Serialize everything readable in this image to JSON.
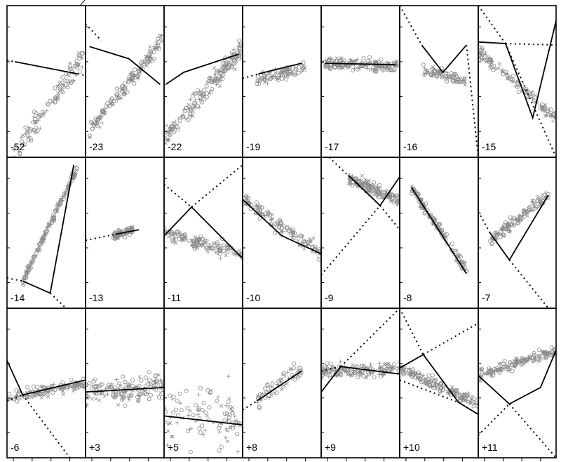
{
  "chart_data": {
    "type": "scatter",
    "title": "",
    "xlabel": "",
    "ylabel": "",
    "grid": false,
    "layout": {
      "rows": 3,
      "cols": 7
    },
    "axis_ranges": {
      "x": [
        0,
        1
      ],
      "y": [
        0,
        1
      ]
    },
    "colors": {
      "points": "#8a8a8a",
      "lines": "#000000"
    },
    "panels": [
      {
        "label": "-52",
        "cloud": [
          0.08,
          0.98,
          0.0,
          0.68,
          0.46,
          0.13,
          0.5
        ],
        "fit": [
          [
            0.1,
            0.63
          ],
          [
            0.9,
            0.55
          ]
        ],
        "ext": [
          [
            [
              0.0,
              0.64
            ],
            [
              0.1,
              0.63
            ]
          ],
          [
            [
              0.9,
              0.55
            ],
            [
              1.0,
              0.54
            ]
          ]
        ]
      },
      {
        "label": "-23",
        "cloud": [
          0.05,
          0.98,
          0.18,
          0.77,
          0.6,
          0.07,
          0.7
        ],
        "fit": [
          [
            0.05,
            0.73
          ],
          [
            0.55,
            0.65
          ],
          [
            0.95,
            0.48
          ]
        ],
        "ext": [
          [
            [
              0.0,
              0.88
            ],
            [
              0.2,
              0.77
            ]
          ]
        ]
      },
      {
        "label": "-22",
        "cloud": [
          0.0,
          1.0,
          0.12,
          0.72,
          0.75,
          0.09,
          0.85
        ],
        "fit": [
          [
            0.02,
            0.48
          ],
          [
            0.25,
            0.56
          ],
          [
            0.95,
            0.68
          ]
        ],
        "ext": []
      },
      {
        "label": "-19",
        "cloud": [
          0.18,
          0.8,
          0.5,
          0.6,
          0.6,
          0.06,
          0.4
        ],
        "fit": [
          [
            0.2,
            0.55
          ],
          [
            0.75,
            0.62
          ]
        ],
        "ext": [
          [
            [
              0.0,
              0.52
            ],
            [
              0.2,
              0.55
            ]
          ]
        ]
      },
      {
        "label": "-17",
        "cloud": [
          0.05,
          0.98,
          0.62,
          0.6,
          0.62,
          0.05,
          0.75
        ],
        "fit": [
          [
            0.05,
            0.62
          ],
          [
            0.95,
            0.61
          ]
        ],
        "ext": [
          [
            [
              0.0,
              0.625
            ],
            [
              0.05,
              0.62
            ]
          ]
        ]
      },
      {
        "label": "-16",
        "cloud": [
          0.3,
          0.85,
          0.58,
          0.5,
          0.64,
          0.05,
          0.35
        ],
        "fit": [
          [
            0.28,
            0.74
          ],
          [
            0.55,
            0.56
          ],
          [
            0.85,
            0.74
          ]
        ],
        "ext": [
          [
            [
              0.0,
              1.0
            ],
            [
              0.28,
              0.74
            ]
          ],
          [
            [
              0.85,
              0.74
            ],
            [
              1.0,
              0.0
            ]
          ]
        ]
      },
      {
        "label": "-15",
        "cloud": [
          0.0,
          1.0,
          0.7,
          0.26,
          0.76,
          0.05,
          0.55
        ],
        "fit": [
          [
            0.0,
            0.76
          ],
          [
            0.35,
            0.75
          ],
          [
            0.7,
            0.26
          ],
          [
            1.0,
            0.9
          ]
        ],
        "ext": [
          [
            [
              0.0,
              1.0
            ],
            [
              0.35,
              0.75
            ]
          ],
          [
            [
              0.35,
              0.75
            ],
            [
              1.0,
              0.0
            ]
          ],
          [
            [
              0.35,
              0.75
            ],
            [
              1.0,
              0.74
            ]
          ]
        ]
      },
      {
        "label": "-14",
        "cloud": [
          0.2,
          0.9,
          0.18,
          0.94,
          0.6,
          0.04,
          0.7
        ],
        "fit": [
          [
            0.2,
            0.18
          ],
          [
            0.55,
            0.1
          ],
          [
            0.85,
            0.95
          ]
        ],
        "ext": [
          [
            [
              0.0,
              0.2
            ],
            [
              0.2,
              0.18
            ]
          ],
          [
            [
              0.55,
              0.1
            ],
            [
              0.75,
              0.0
            ]
          ]
        ]
      },
      {
        "label": "-13",
        "cloud": [
          0.35,
          0.6,
          0.48,
          0.52,
          0.2,
          0.05,
          0.35
        ],
        "fit": [
          [
            0.38,
            0.49
          ],
          [
            0.68,
            0.52
          ]
        ],
        "ext": [
          [
            [
              0.0,
              0.45
            ],
            [
              0.38,
              0.49
            ]
          ]
        ]
      },
      {
        "label": "-11",
        "cloud": [
          0.0,
          1.0,
          0.5,
          0.35,
          0.75,
          0.06,
          0.6
        ],
        "fit": [
          [
            0.0,
            0.48
          ],
          [
            0.35,
            0.67
          ],
          [
            1.0,
            0.33
          ]
        ],
        "ext": [
          [
            [
              0.0,
              0.82
            ],
            [
              0.35,
              0.67
            ]
          ],
          [
            [
              0.35,
              0.67
            ],
            [
              1.0,
              0.95
            ]
          ]
        ]
      },
      {
        "label": "-10",
        "cloud": [
          0.0,
          1.0,
          0.72,
          0.36,
          0.72,
          0.06,
          0.6
        ],
        "fit": [
          [
            0.0,
            0.72
          ],
          [
            0.5,
            0.48
          ],
          [
            1.0,
            0.36
          ]
        ],
        "ext": []
      },
      {
        "label": "-9",
        "cloud": [
          0.35,
          1.0,
          0.86,
          0.72,
          0.74,
          0.05,
          0.7
        ],
        "fit": [
          [
            0.35,
            0.88
          ],
          [
            0.75,
            0.68
          ],
          [
            1.0,
            0.87
          ]
        ],
        "ext": [
          [
            [
              0.0,
              0.22
            ],
            [
              0.75,
              0.68
            ]
          ],
          [
            [
              0.1,
              1.0
            ],
            [
              0.75,
              0.68
            ]
          ],
          [
            [
              0.75,
              0.68
            ],
            [
              1.0,
              0.52
            ]
          ]
        ]
      },
      {
        "label": "-8",
        "cloud": [
          0.15,
          0.85,
          0.8,
          0.25,
          0.72,
          0.05,
          0.6
        ],
        "fit": [
          [
            0.15,
            0.8
          ],
          [
            0.85,
            0.23
          ]
        ],
        "ext": []
      },
      {
        "label": "-7",
        "cloud": [
          0.15,
          0.9,
          0.45,
          0.75,
          0.72,
          0.05,
          0.6
        ],
        "fit": [
          [
            0.15,
            0.5
          ],
          [
            0.4,
            0.32
          ],
          [
            0.9,
            0.75
          ]
        ],
        "ext": [
          [
            [
              0.0,
              0.64
            ],
            [
              0.15,
              0.5
            ]
          ],
          [
            [
              0.4,
              0.32
            ],
            [
              0.9,
              0.0
            ]
          ]
        ]
      },
      {
        "label": "-6",
        "cloud": [
          0.0,
          1.0,
          0.4,
          0.5,
          0.75,
          0.05,
          0.6
        ],
        "fit": [
          [
            0.0,
            0.65
          ],
          [
            0.2,
            0.42
          ],
          [
            1.0,
            0.52
          ]
        ],
        "ext": [
          [
            [
              0.0,
              0.38
            ],
            [
              0.2,
              0.42
            ]
          ],
          [
            [
              0.2,
              0.42
            ],
            [
              0.8,
              0.0
            ]
          ]
        ]
      },
      {
        "label": "+3",
        "cloud": [
          0.0,
          1.0,
          0.44,
          0.47,
          0.8,
          0.1,
          0.7
        ],
        "fit": [
          [
            0.0,
            0.44
          ],
          [
            1.0,
            0.47
          ]
        ],
        "ext": []
      },
      {
        "label": "+5",
        "cloud": [
          0.0,
          1.0,
          0.27,
          0.27,
          0.8,
          0.25,
          0.45
        ],
        "fit": [
          [
            0.0,
            0.28
          ],
          [
            1.0,
            0.22
          ]
        ],
        "ext": []
      },
      {
        "label": "+8",
        "cloud": [
          0.18,
          0.75,
          0.38,
          0.6,
          0.3,
          0.12,
          0.3
        ],
        "fit": [
          [
            0.18,
            0.38
          ],
          [
            0.75,
            0.58
          ]
        ],
        "ext": [
          [
            [
              0.0,
              0.32
            ],
            [
              0.18,
              0.38
            ]
          ]
        ]
      },
      {
        "label": "+9",
        "cloud": [
          0.0,
          1.0,
          0.58,
          0.59,
          0.72,
          0.06,
          0.7
        ],
        "fit": [
          [
            0.0,
            0.44
          ],
          [
            0.25,
            0.61
          ],
          [
            1.0,
            0.56
          ]
        ],
        "ext": [
          [
            [
              0.0,
              0.58
            ],
            [
              0.25,
              0.61
            ]
          ],
          [
            [
              0.25,
              0.61
            ],
            [
              1.0,
              1.0
            ]
          ]
        ]
      },
      {
        "label": "+10",
        "cloud": [
          0.0,
          1.0,
          0.6,
          0.36,
          0.72,
          0.05,
          0.7
        ],
        "fit": [
          [
            0.0,
            0.6
          ],
          [
            0.3,
            0.69
          ],
          [
            0.75,
            0.37
          ],
          [
            1.0,
            0.29
          ]
        ],
        "ext": [
          [
            [
              0.0,
              0.52
            ],
            [
              0.75,
              0.37
            ]
          ],
          [
            [
              0.0,
              1.0
            ],
            [
              0.3,
              0.69
            ]
          ],
          [
            [
              0.3,
              0.69
            ],
            [
              1.0,
              0.9
            ]
          ]
        ]
      },
      {
        "label": "+11",
        "cloud": [
          0.0,
          1.0,
          0.55,
          0.72,
          0.7,
          0.05,
          0.7
        ],
        "fit": [
          [
            0.0,
            0.55
          ],
          [
            0.4,
            0.36
          ],
          [
            0.8,
            0.47
          ],
          [
            1.0,
            0.72
          ]
        ],
        "ext": [
          [
            [
              0.0,
              0.15
            ],
            [
              0.4,
              0.36
            ]
          ],
          [
            [
              0.4,
              0.36
            ],
            [
              1.0,
              0.0
            ]
          ]
        ]
      }
    ]
  }
}
